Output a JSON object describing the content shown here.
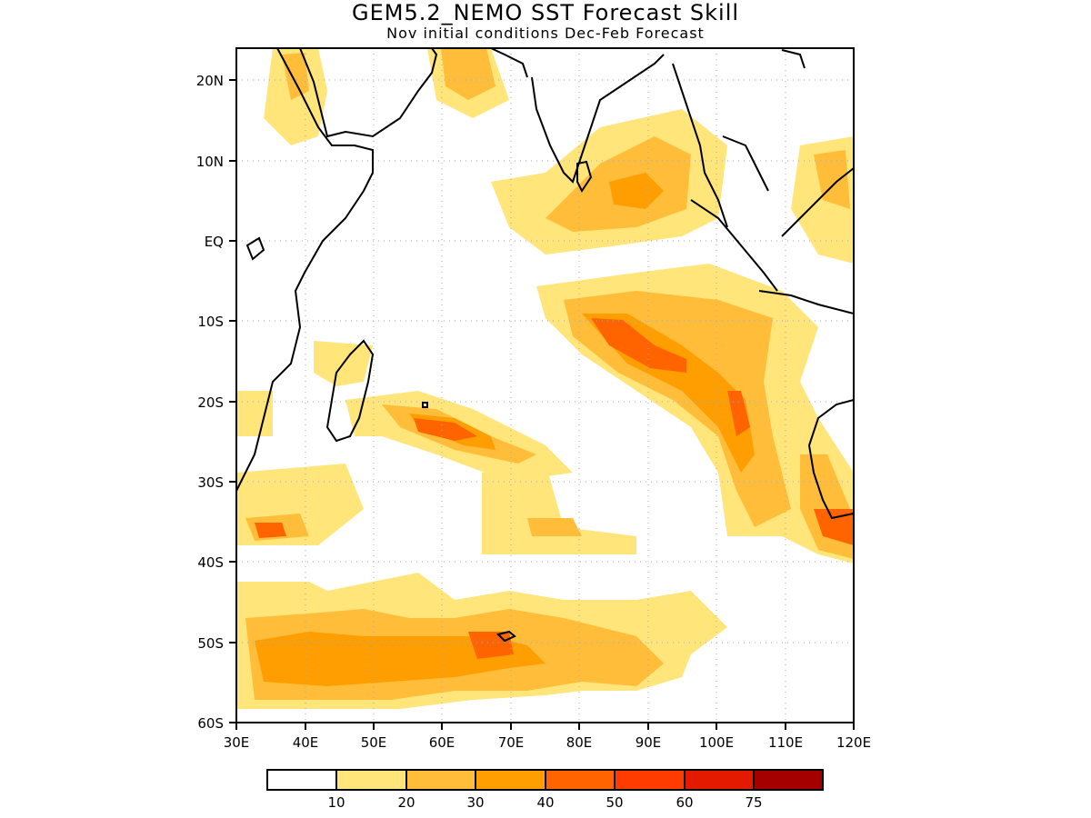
{
  "title": "GEM5.2_NEMO SST Forecast Skill",
  "subtitle": "Nov initial conditions  Dec-Feb Forecast",
  "map": {
    "lon_range": [
      30,
      120
    ],
    "lat_range": [
      -60,
      24
    ],
    "x_ticks": [
      {
        "value": 30,
        "label": "30E"
      },
      {
        "value": 40,
        "label": "40E"
      },
      {
        "value": 50,
        "label": "50E"
      },
      {
        "value": 60,
        "label": "60E"
      },
      {
        "value": 70,
        "label": "70E"
      },
      {
        "value": 80,
        "label": "80E"
      },
      {
        "value": 90,
        "label": "90E"
      },
      {
        "value": 100,
        "label": "100E"
      },
      {
        "value": 110,
        "label": "110E"
      },
      {
        "value": 120,
        "label": "120E"
      }
    ],
    "y_ticks": [
      {
        "value": 20,
        "label": "20N"
      },
      {
        "value": 10,
        "label": "10N"
      },
      {
        "value": 0,
        "label": "EQ"
      },
      {
        "value": -10,
        "label": "10S"
      },
      {
        "value": -20,
        "label": "20S"
      },
      {
        "value": -30,
        "label": "30S"
      },
      {
        "value": -40,
        "label": "40S"
      },
      {
        "value": -50,
        "label": "50S"
      },
      {
        "value": -60,
        "label": "60S"
      }
    ],
    "grid": "dotted"
  },
  "colorbar": {
    "colors": [
      "#ffffff",
      "#ffe57a",
      "#ffbd3a",
      "#ff9e00",
      "#ff6400",
      "#ff3c00",
      "#e41a00",
      "#a50000"
    ],
    "labels": [
      "10",
      "20",
      "30",
      "40",
      "50",
      "60",
      "75"
    ]
  }
}
